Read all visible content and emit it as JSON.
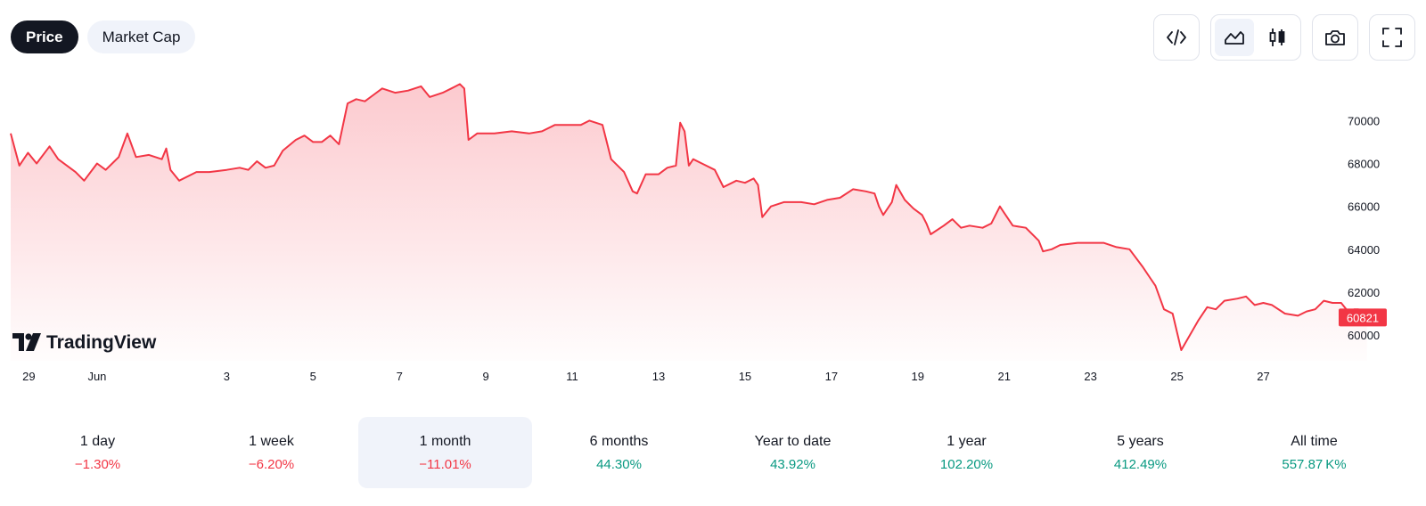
{
  "tabs": [
    {
      "label": "Price",
      "active": true
    },
    {
      "label": "Market Cap",
      "active": false
    }
  ],
  "toolbar": {
    "icons": [
      "embed-code-icon",
      "area-chart-icon",
      "candlestick-chart-icon",
      "camera-icon",
      "fullscreen-icon"
    ],
    "selected_chart_style": "area"
  },
  "watermark": "TradingView",
  "colors": {
    "line": "#f23645",
    "fill_top": "#fcc7cc",
    "negative": "#f23645",
    "positive": "#089981",
    "selected_bg": "#f0f3fa"
  },
  "chart_data": {
    "type": "area",
    "title": "",
    "xlabel": "",
    "ylabel": "",
    "last_value": "60821",
    "ylim": [
      58800,
      72300
    ],
    "y_ticks": [
      60000,
      62000,
      64000,
      66000,
      68000,
      70000
    ],
    "y_tick_labels": [
      "60000",
      "62000",
      "64000",
      "66000",
      "68000",
      "70000"
    ],
    "x_ticks": [
      {
        "label": "29",
        "x": 0.42
      },
      {
        "label": "Jun",
        "x": 2.0
      },
      {
        "label": "3",
        "x": 5.0
      },
      {
        "label": "5",
        "x": 7.0
      },
      {
        "label": "7",
        "x": 9.0
      },
      {
        "label": "9",
        "x": 11.0
      },
      {
        "label": "11",
        "x": 13.0
      },
      {
        "label": "13",
        "x": 15.0
      },
      {
        "label": "15",
        "x": 17.0
      },
      {
        "label": "17",
        "x": 19.0
      },
      {
        "label": "19",
        "x": 21.0
      },
      {
        "label": "21",
        "x": 23.0
      },
      {
        "label": "23",
        "x": 25.0
      },
      {
        "label": "25",
        "x": 27.0
      },
      {
        "label": "27",
        "x": 29.0
      }
    ],
    "x_range": [
      0.0,
      30.64
    ],
    "series": [
      {
        "points": [
          [
            0.0,
            69400
          ],
          [
            0.2,
            67900
          ],
          [
            0.4,
            68500
          ],
          [
            0.6,
            68000
          ],
          [
            0.9,
            68800
          ],
          [
            1.1,
            68200
          ],
          [
            1.5,
            67600
          ],
          [
            1.7,
            67200
          ],
          [
            2.0,
            68000
          ],
          [
            2.2,
            67700
          ],
          [
            2.5,
            68300
          ],
          [
            2.7,
            69400
          ],
          [
            2.9,
            68300
          ],
          [
            3.2,
            68400
          ],
          [
            3.5,
            68200
          ],
          [
            3.6,
            68700
          ],
          [
            3.7,
            67700
          ],
          [
            3.9,
            67200
          ],
          [
            4.3,
            67600
          ],
          [
            4.6,
            67600
          ],
          [
            5.0,
            67700
          ],
          [
            5.3,
            67800
          ],
          [
            5.5,
            67700
          ],
          [
            5.7,
            68100
          ],
          [
            5.9,
            67800
          ],
          [
            6.1,
            67900
          ],
          [
            6.3,
            68600
          ],
          [
            6.6,
            69100
          ],
          [
            6.8,
            69300
          ],
          [
            7.0,
            69000
          ],
          [
            7.2,
            69000
          ],
          [
            7.4,
            69300
          ],
          [
            7.6,
            68900
          ],
          [
            7.8,
            70800
          ],
          [
            8.0,
            71000
          ],
          [
            8.2,
            70900
          ],
          [
            8.4,
            71200
          ],
          [
            8.6,
            71500
          ],
          [
            8.9,
            71300
          ],
          [
            9.2,
            71400
          ],
          [
            9.5,
            71600
          ],
          [
            9.7,
            71100
          ],
          [
            10.0,
            71300
          ],
          [
            10.2,
            71500
          ],
          [
            10.4,
            71700
          ],
          [
            10.5,
            71500
          ],
          [
            10.6,
            69100
          ],
          [
            10.8,
            69400
          ],
          [
            11.2,
            69400
          ],
          [
            11.6,
            69500
          ],
          [
            12.0,
            69400
          ],
          [
            12.3,
            69500
          ],
          [
            12.6,
            69800
          ],
          [
            13.0,
            69800
          ],
          [
            13.2,
            69800
          ],
          [
            13.4,
            70000
          ],
          [
            13.7,
            69800
          ],
          [
            13.9,
            68200
          ],
          [
            14.2,
            67600
          ],
          [
            14.4,
            66700
          ],
          [
            14.5,
            66600
          ],
          [
            14.7,
            67500
          ],
          [
            15.0,
            67500
          ],
          [
            15.2,
            67800
          ],
          [
            15.4,
            67900
          ],
          [
            15.5,
            69900
          ],
          [
            15.6,
            69500
          ],
          [
            15.7,
            67900
          ],
          [
            15.8,
            68200
          ],
          [
            16.0,
            68000
          ],
          [
            16.3,
            67700
          ],
          [
            16.5,
            66900
          ],
          [
            16.8,
            67200
          ],
          [
            17.0,
            67100
          ],
          [
            17.2,
            67300
          ],
          [
            17.3,
            67000
          ],
          [
            17.4,
            65500
          ],
          [
            17.6,
            66000
          ],
          [
            17.9,
            66200
          ],
          [
            18.3,
            66200
          ],
          [
            18.6,
            66100
          ],
          [
            18.9,
            66300
          ],
          [
            19.2,
            66400
          ],
          [
            19.5,
            66800
          ],
          [
            19.8,
            66700
          ],
          [
            20.0,
            66600
          ],
          [
            20.1,
            66000
          ],
          [
            20.2,
            65600
          ],
          [
            20.4,
            66200
          ],
          [
            20.5,
            67000
          ],
          [
            20.7,
            66300
          ],
          [
            20.9,
            65900
          ],
          [
            21.1,
            65600
          ],
          [
            21.2,
            65200
          ],
          [
            21.3,
            64700
          ],
          [
            21.6,
            65100
          ],
          [
            21.8,
            65400
          ],
          [
            22.0,
            65000
          ],
          [
            22.2,
            65100
          ],
          [
            22.5,
            65000
          ],
          [
            22.7,
            65200
          ],
          [
            22.9,
            66000
          ],
          [
            23.0,
            65700
          ],
          [
            23.2,
            65100
          ],
          [
            23.5,
            65000
          ],
          [
            23.8,
            64400
          ],
          [
            23.9,
            63900
          ],
          [
            24.1,
            64000
          ],
          [
            24.3,
            64200
          ],
          [
            24.7,
            64300
          ],
          [
            25.0,
            64300
          ],
          [
            25.3,
            64300
          ],
          [
            25.6,
            64100
          ],
          [
            25.9,
            64000
          ],
          [
            26.2,
            63200
          ],
          [
            26.4,
            62600
          ],
          [
            26.5,
            62300
          ],
          [
            26.7,
            61200
          ],
          [
            26.9,
            61000
          ],
          [
            27.1,
            59300
          ],
          [
            27.3,
            60000
          ],
          [
            27.5,
            60700
          ],
          [
            27.7,
            61300
          ],
          [
            27.9,
            61200
          ],
          [
            28.1,
            61600
          ],
          [
            28.4,
            61700
          ],
          [
            28.6,
            61800
          ],
          [
            28.8,
            61400
          ],
          [
            29.0,
            61500
          ],
          [
            29.2,
            61400
          ],
          [
            29.5,
            61000
          ],
          [
            29.8,
            60900
          ],
          [
            30.0,
            61100
          ],
          [
            30.2,
            61200
          ],
          [
            30.4,
            61600
          ],
          [
            30.6,
            61500
          ],
          [
            30.8,
            61500
          ],
          [
            31.0,
            61000
          ],
          [
            31.1,
            61200
          ],
          [
            31.2,
            61200
          ],
          [
            31.3,
            60900
          ],
          [
            31.4,
            60821
          ]
        ]
      }
    ]
  },
  "periods": [
    {
      "label": "1 day",
      "value": "−1.30%",
      "trend": "neg",
      "selected": false
    },
    {
      "label": "1 week",
      "value": "−6.20%",
      "trend": "neg",
      "selected": false
    },
    {
      "label": "1 month",
      "value": "−11.01%",
      "trend": "neg",
      "selected": true
    },
    {
      "label": "6 months",
      "value": "44.30%",
      "trend": "pos",
      "selected": false
    },
    {
      "label": "Year to date",
      "value": "43.92%",
      "trend": "pos",
      "selected": false
    },
    {
      "label": "1 year",
      "value": "102.20%",
      "trend": "pos",
      "selected": false
    },
    {
      "label": "5 years",
      "value": "412.49%",
      "trend": "pos",
      "selected": false
    },
    {
      "label": "All time",
      "value": "557.87 K%",
      "trend": "pos",
      "selected": false
    }
  ]
}
